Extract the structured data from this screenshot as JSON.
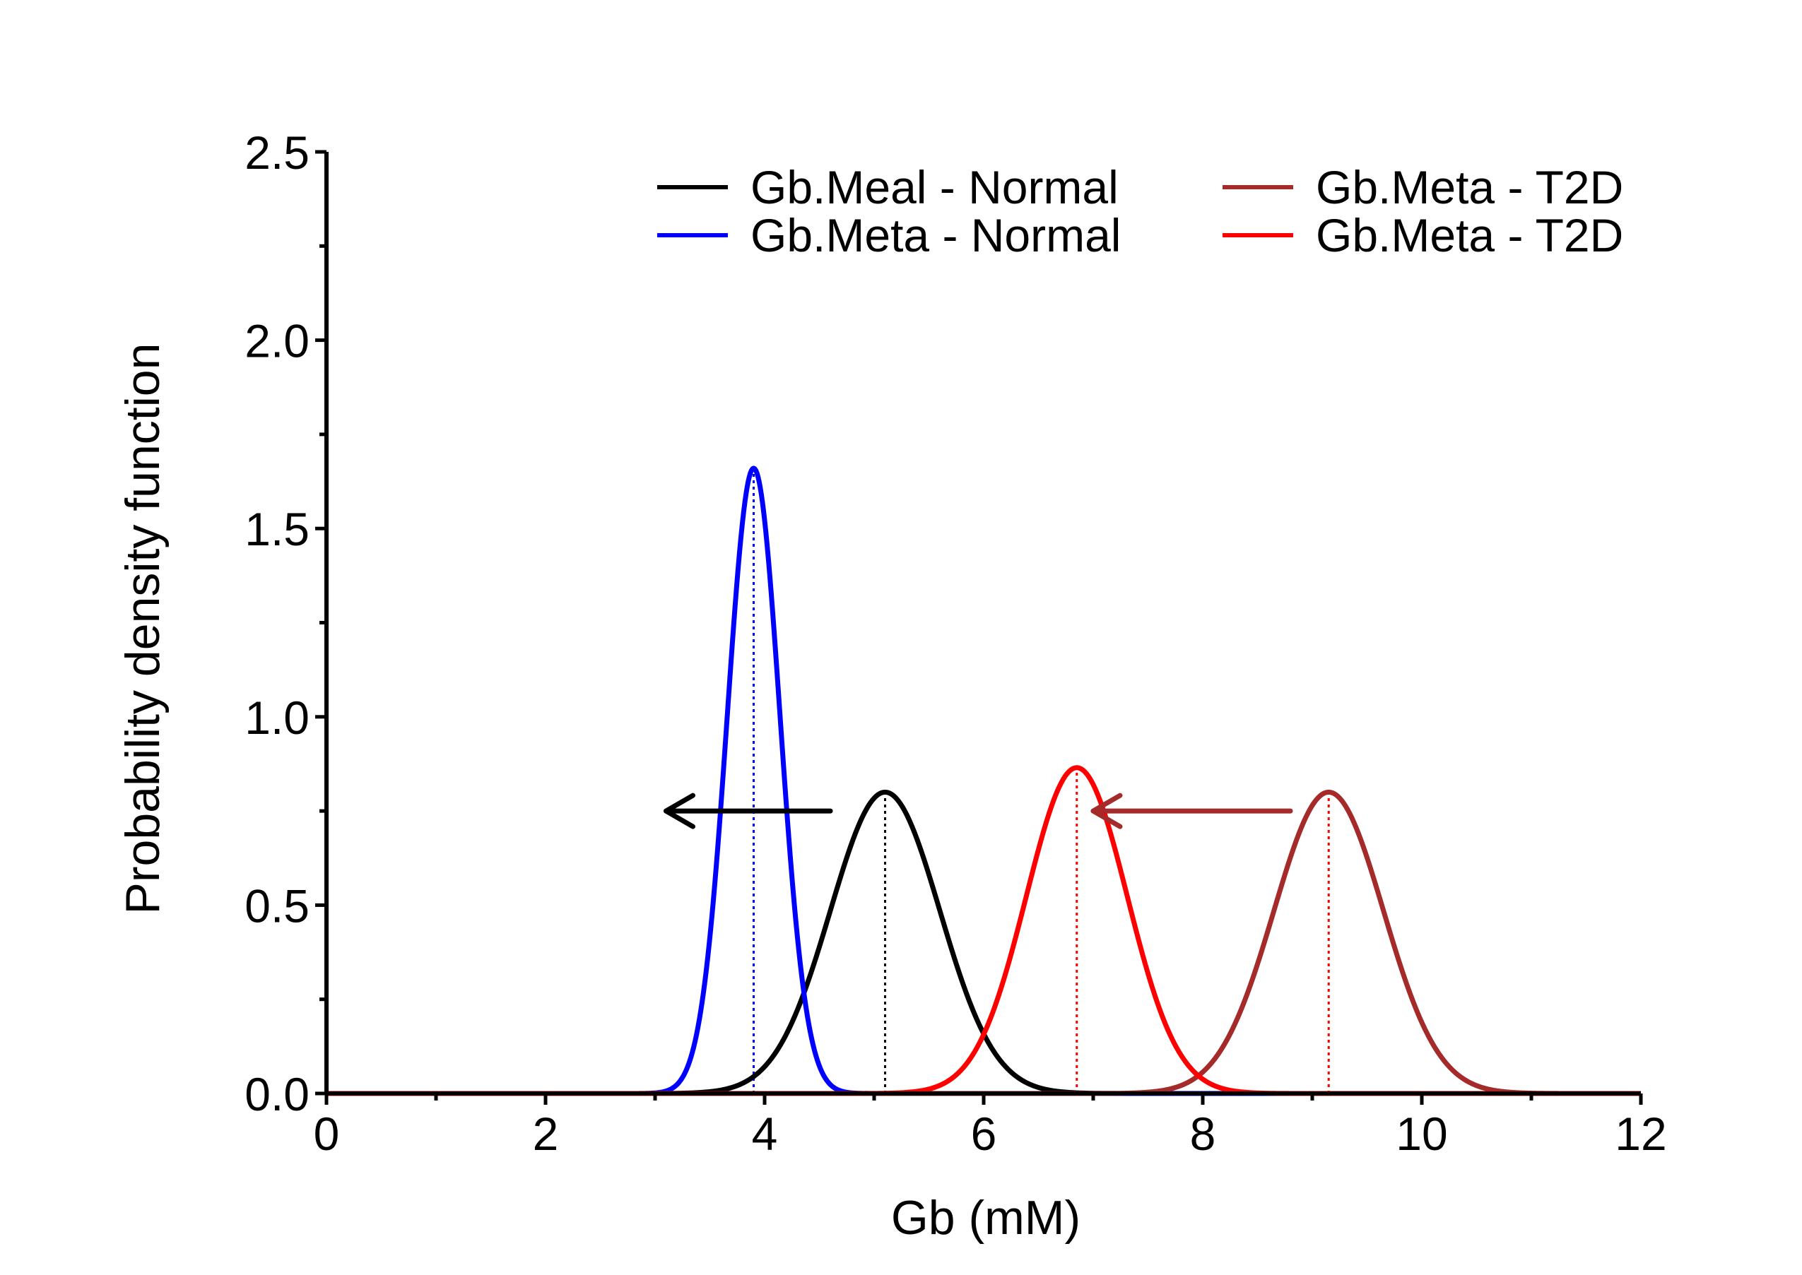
{
  "colors": {
    "meal_normal": "#000000",
    "meta_normal": "#0000ff",
    "meta_t2d_dark": "#a52a2a",
    "meta_t2d_red": "#ff0000",
    "axis": "#000000"
  },
  "chart_data": {
    "type": "line",
    "title": "",
    "xlabel": "Gb (mM)",
    "ylabel": "Probability density function",
    "xlim": [
      0,
      12
    ],
    "ylim": [
      0,
      2.5
    ],
    "x_ticks": [
      {
        "value": 0,
        "label": "0"
      },
      {
        "value": 2,
        "label": "2"
      },
      {
        "value": 4,
        "label": "4"
      },
      {
        "value": 6,
        "label": "6"
      },
      {
        "value": 8,
        "label": "8"
      },
      {
        "value": 10,
        "label": "10"
      },
      {
        "value": 12,
        "label": "12"
      }
    ],
    "y_ticks": [
      {
        "value": 0.0,
        "label": "0.0"
      },
      {
        "value": 0.5,
        "label": "0.5"
      },
      {
        "value": 1.0,
        "label": "1.0"
      },
      {
        "value": 1.5,
        "label": "1.5"
      },
      {
        "value": 2.0,
        "label": "2.0"
      },
      {
        "value": 2.5,
        "label": "2.5"
      }
    ],
    "series": [
      {
        "name": "Gb.Meal - Normal",
        "distribution": "normal",
        "mean": 5.1,
        "sd": 0.5,
        "peak": 0.8,
        "color_key": "meal_normal"
      },
      {
        "name": "Gb.Meta - Normal",
        "distribution": "normal",
        "mean": 3.9,
        "sd": 0.24,
        "peak": 1.66,
        "color_key": "meta_normal"
      },
      {
        "name": "Gb.Meta - T2D",
        "distribution": "normal",
        "mean": 9.15,
        "sd": 0.5,
        "peak": 0.8,
        "color_key": "meta_t2d_dark"
      },
      {
        "name": "Gb.Meta - T2D",
        "distribution": "normal",
        "mean": 6.85,
        "sd": 0.46,
        "peak": 0.865,
        "color_key": "meta_t2d_red"
      }
    ],
    "mean_markers": [
      {
        "x": 3.9,
        "color_key": "meta_normal"
      },
      {
        "x": 5.1,
        "color_key": "meal_normal"
      },
      {
        "x": 6.85,
        "color_key": "meta_t2d_red"
      },
      {
        "x": 9.15,
        "color_key": "meta_t2d_red"
      }
    ],
    "arrows": [
      {
        "from_x": 4.6,
        "to_x": 3.1,
        "y": 0.75,
        "color_key": "meal_normal"
      },
      {
        "from_x": 8.8,
        "to_x": 7.0,
        "y": 0.75,
        "color_key": "meta_t2d_dark"
      }
    ],
    "legend_position": "top-right",
    "grid": false
  }
}
